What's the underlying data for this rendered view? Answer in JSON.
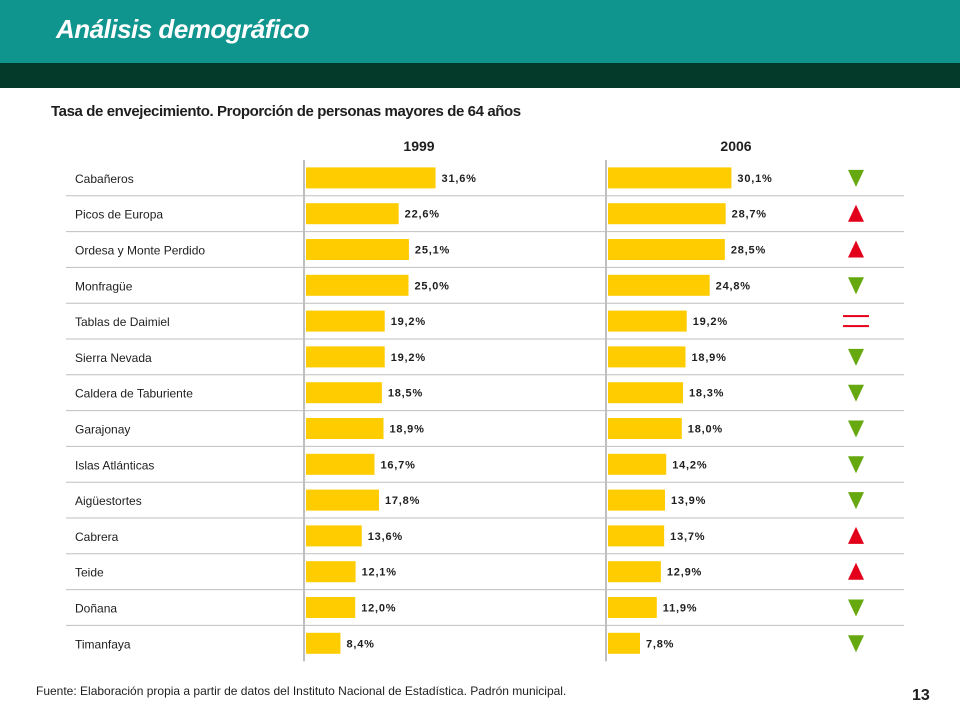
{
  "header": {
    "title": "Análisis demográfico"
  },
  "chart_data": {
    "type": "bar",
    "title": "Tasa de envejecimiento. Proporción de personas mayores de 64 años",
    "categories": [
      "Cabañeros",
      "Picos de Europa",
      "Ordesa y Monte Perdido",
      "Monfragüe",
      "Tablas de Daimiel",
      "Sierra Nevada",
      "Caldera de Taburiente",
      "Garajonay",
      "Islas Atlánticas",
      "Aigüestortes",
      "Cabrera",
      "Teide",
      "Doñana",
      "Timanfaya"
    ],
    "series": [
      {
        "name": "1999",
        "values": [
          31.6,
          22.6,
          25.1,
          25.0,
          19.2,
          19.2,
          18.5,
          18.9,
          16.7,
          17.8,
          13.6,
          12.1,
          12.0,
          8.4
        ],
        "labels": [
          "31,6%",
          "22,6%",
          "25,1%",
          "25,0%",
          "19,2%",
          "19,2%",
          "18,5%",
          "18,9%",
          "16,7%",
          "17,8%",
          "13,6%",
          "12,1%",
          "12,0%",
          "8,4%"
        ]
      },
      {
        "name": "2006",
        "values": [
          30.1,
          28.7,
          28.5,
          24.8,
          19.2,
          18.9,
          18.3,
          18.0,
          14.2,
          13.9,
          13.7,
          12.9,
          11.9,
          7.8
        ],
        "labels": [
          "30,1%",
          "28,7%",
          "28,5%",
          "24,8%",
          "19,2%",
          "18,9%",
          "18,3%",
          "18,0%",
          "14,2%",
          "13,9%",
          "13,7%",
          "12,9%",
          "11,9%",
          "7,8%"
        ]
      }
    ],
    "trend": [
      "down",
      "up",
      "up",
      "down",
      "equal",
      "down",
      "down",
      "down",
      "down",
      "down",
      "up",
      "up",
      "down",
      "down"
    ],
    "colors": {
      "bar": "#ffcc00",
      "up": "#e3001b",
      "down": "#66a80f",
      "equal": "#e3001b",
      "grid": "#bfbfbf",
      "axis": "#7f7f7f",
      "text": "#1e1e1e"
    }
  },
  "footer": {
    "source": "Fuente: Elaboración propia a partir de datos del Instituto Nacional de Estadística. Padrón municipal.",
    "page_number": "13"
  }
}
